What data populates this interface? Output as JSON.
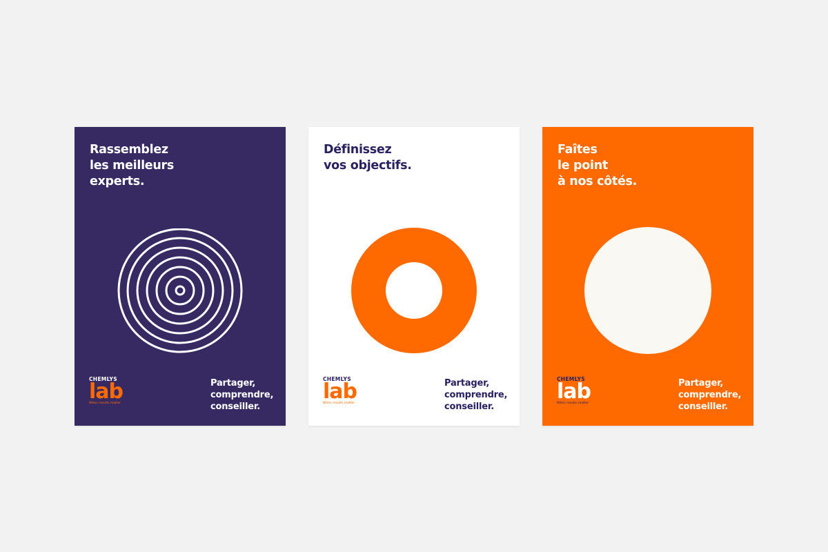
{
  "colors": {
    "purple": "#372a63",
    "orange": "#ff6a00",
    "white": "#ffffff",
    "cream": "#faf8f3",
    "background": "#f2f2f2"
  },
  "logo": {
    "brand": "CHEMLYS",
    "lab": "lab",
    "slogan": "When results matter"
  },
  "posters": [
    {
      "headline": "Rassemblez\nles meilleurs\nexperts.",
      "tagline": "Partager,\ncomprendre,\nconseiller.",
      "graphic": "concentric-circles"
    },
    {
      "headline": "Définissez\nvos objectifs.",
      "tagline": "Partager,\ncomprendre,\nconseiller.",
      "graphic": "orange-ring"
    },
    {
      "headline": "Faîtes\nle point\nà nos côtés.",
      "tagline": "Partager,\ncomprendre,\nconseiller.",
      "graphic": "cream-disc"
    }
  ]
}
